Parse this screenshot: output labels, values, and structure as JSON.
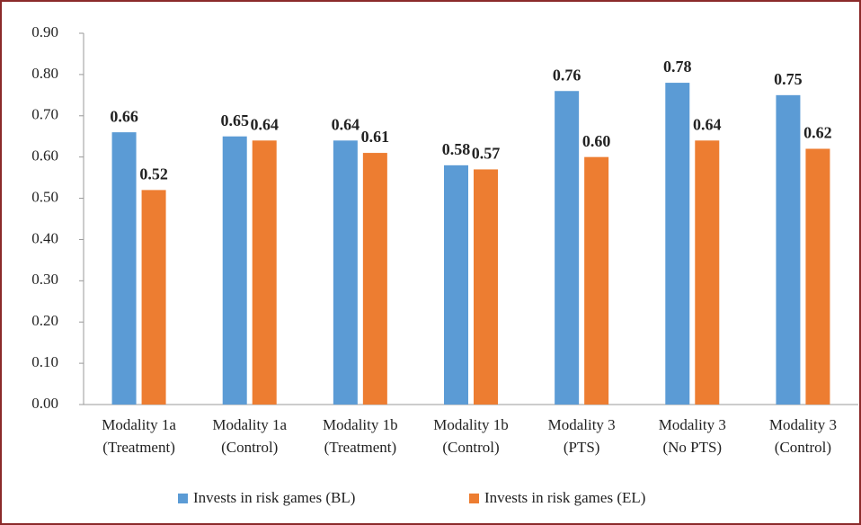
{
  "chart_data": {
    "type": "bar",
    "categories": [
      [
        "Modality 1a",
        "(Treatment)"
      ],
      [
        "Modality 1a",
        "(Control)"
      ],
      [
        "Modality 1b",
        "(Treatment)"
      ],
      [
        "Modality 1b",
        "(Control)"
      ],
      [
        "Modality 3",
        "(PTS)"
      ],
      [
        "Modality 3",
        "(No PTS)"
      ],
      [
        "Modality 3",
        "(Control)"
      ]
    ],
    "series": [
      {
        "name": "Invests in risk games (BL)",
        "color": "#5b9bd5",
        "values": [
          0.66,
          0.65,
          0.64,
          0.58,
          0.76,
          0.78,
          0.75
        ],
        "value_labels": [
          "0.66",
          "0.65",
          "0.64",
          "0.58",
          "0.76",
          "0.78",
          "0.75"
        ]
      },
      {
        "name": "Invests in risk games (EL)",
        "color": "#ed7d31",
        "values": [
          0.52,
          0.64,
          0.61,
          0.57,
          0.6,
          0.64,
          0.62
        ],
        "value_labels": [
          "0.52",
          "0.64",
          "0.61",
          "0.57",
          "0.60",
          "0.64",
          "0.62"
        ]
      }
    ],
    "ylim": [
      0,
      0.9
    ],
    "yticks": [
      {
        "value": 0,
        "label": "0.00"
      },
      {
        "value": 0.1,
        "label": "0.10"
      },
      {
        "value": 0.2,
        "label": "0.20"
      },
      {
        "value": 0.3,
        "label": "0.30"
      },
      {
        "value": 0.4,
        "label": "0.40"
      },
      {
        "value": 0.5,
        "label": "0.50"
      },
      {
        "value": 0.6,
        "label": "0.60"
      },
      {
        "value": 0.7,
        "label": "0.70"
      },
      {
        "value": 0.8,
        "label": "0.80"
      },
      {
        "value": 0.9,
        "label": "0.90"
      }
    ],
    "legend": "bottom"
  }
}
